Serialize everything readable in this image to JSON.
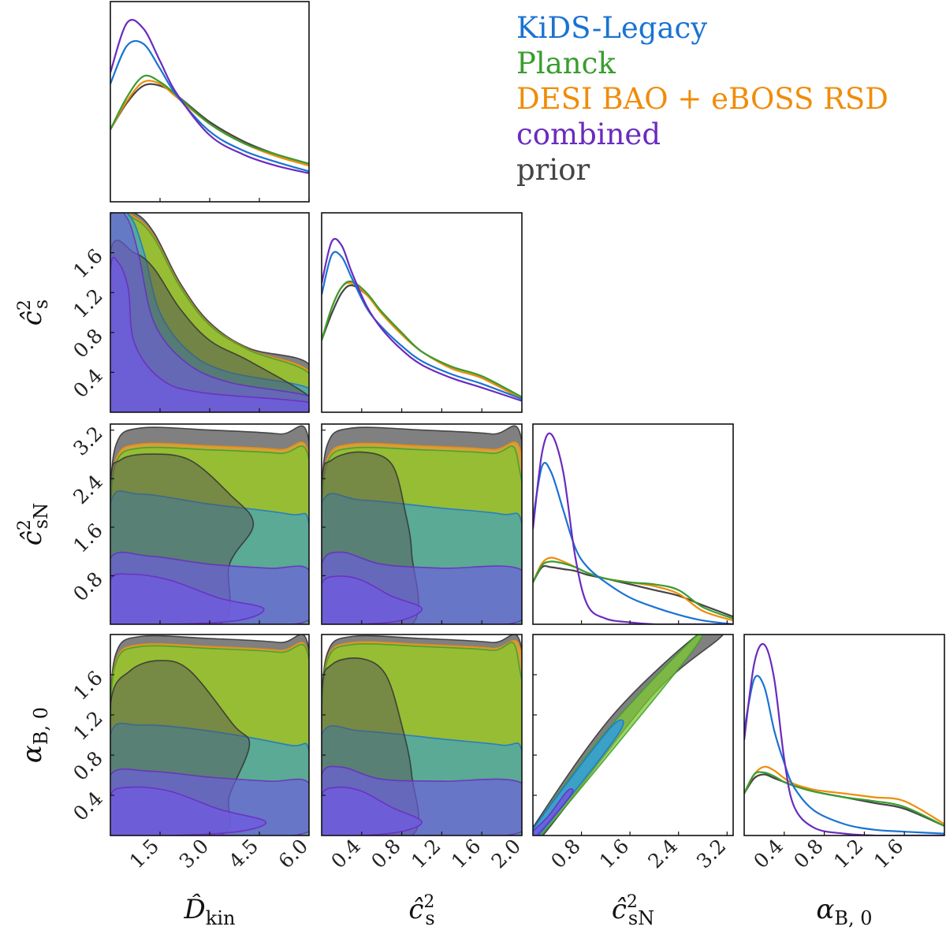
{
  "figure": {
    "type": "corner_plot",
    "parameters": [
      {
        "id": "Dkin",
        "label": "D̂",
        "sub": "kin",
        "range": [
          0,
          6.0
        ],
        "ticks": [
          1.5,
          3.0,
          4.5,
          6.0
        ]
      },
      {
        "id": "cs2",
        "label": "ĉ",
        "sup": "2",
        "sub": "s",
        "range": [
          0,
          2.0
        ],
        "ticks": [
          0.4,
          0.8,
          1.2,
          1.6,
          2.0
        ]
      },
      {
        "id": "csN2",
        "label": "ĉ",
        "sup": "2",
        "sub": "sN",
        "range": [
          0,
          3.3
        ],
        "ticks": [
          0.8,
          1.6,
          2.4,
          3.2
        ]
      },
      {
        "id": "alphaB0",
        "label": "α",
        "sub": "B, 0",
        "range": [
          0,
          2.0
        ],
        "ticks": [
          0.4,
          0.8,
          1.2,
          1.6
        ]
      }
    ]
  },
  "legend": [
    {
      "name": "KiDS-Legacy",
      "color": "#1a73d2"
    },
    {
      "name": "Planck",
      "color": "#3a9d2f"
    },
    {
      "name": "DESI BAO + eBOSS RSD",
      "color": "#f08c0a"
    },
    {
      "name": "combined",
      "color": "#6a2bbf"
    },
    {
      "name": "prior",
      "color": "#444444"
    }
  ],
  "chart_data": {
    "type": "corner",
    "series": [
      {
        "name": "KiDS-Legacy",
        "color": "#1a73d2",
        "fill": "#2a9be6"
      },
      {
        "name": "Planck",
        "color": "#3a9d2f",
        "fill": "#7ec932"
      },
      {
        "name": "DESI BAO + eBOSS RSD",
        "color": "#f08c0a",
        "fill": "#f2b01e"
      },
      {
        "name": "combined",
        "color": "#6a2bbf",
        "fill": "#6f5be0"
      },
      {
        "name": "prior",
        "color": "#444444",
        "fill": "#555555"
      }
    ],
    "marginals": {
      "Dkin": {
        "x": [
          0,
          0.5,
          1.0,
          1.5,
          2.0,
          3.0,
          4.0,
          5.0,
          6.0
        ],
        "series": {
          "KiDS-Legacy": [
            0.62,
            0.82,
            0.83,
            0.7,
            0.56,
            0.37,
            0.27,
            0.21,
            0.16
          ],
          "Planck": [
            0.38,
            0.55,
            0.66,
            0.63,
            0.56,
            0.41,
            0.31,
            0.25,
            0.2
          ],
          "DESI BAO + eBOSS RSD": [
            0.38,
            0.53,
            0.63,
            0.62,
            0.55,
            0.41,
            0.31,
            0.24,
            0.19
          ],
          "combined": [
            0.68,
            0.94,
            0.91,
            0.74,
            0.57,
            0.35,
            0.25,
            0.19,
            0.15
          ],
          "prior": [
            0.38,
            0.52,
            0.61,
            0.61,
            0.56,
            0.42,
            0.32,
            0.25,
            0.2
          ]
        }
      },
      "cs2": {
        "x": [
          0,
          0.1,
          0.2,
          0.3,
          0.45,
          0.6,
          0.8,
          1.0,
          1.3,
          1.6,
          2.0
        ],
        "series": {
          "KiDS-Legacy": [
            0.62,
            0.83,
            0.82,
            0.71,
            0.55,
            0.45,
            0.35,
            0.27,
            0.2,
            0.15,
            0.07
          ],
          "Planck": [
            0.38,
            0.55,
            0.66,
            0.69,
            0.63,
            0.53,
            0.42,
            0.32,
            0.24,
            0.19,
            0.08
          ],
          "DESI BAO + eBOSS RSD": [
            0.38,
            0.55,
            0.66,
            0.68,
            0.62,
            0.52,
            0.41,
            0.32,
            0.23,
            0.18,
            0.07
          ],
          "combined": [
            0.68,
            0.9,
            0.88,
            0.74,
            0.56,
            0.44,
            0.33,
            0.25,
            0.18,
            0.13,
            0.06
          ],
          "prior": [
            0.38,
            0.52,
            0.63,
            0.67,
            0.62,
            0.53,
            0.42,
            0.32,
            0.24,
            0.19,
            0.08
          ]
        }
      },
      "csN2": {
        "x": [
          0,
          0.15,
          0.3,
          0.5,
          0.7,
          0.9,
          1.2,
          1.6,
          2.0,
          2.4,
          2.8,
          3.3
        ],
        "series": {
          "KiDS-Legacy": [
            0.55,
            0.83,
            0.8,
            0.6,
            0.4,
            0.3,
            0.22,
            0.14,
            0.09,
            0.05,
            0.02,
            0.0
          ],
          "Planck": [
            0.22,
            0.31,
            0.33,
            0.32,
            0.3,
            0.27,
            0.24,
            0.22,
            0.21,
            0.18,
            0.09,
            0.03
          ],
          "DESI BAO + eBOSS RSD": [
            0.22,
            0.32,
            0.35,
            0.33,
            0.3,
            0.27,
            0.24,
            0.22,
            0.2,
            0.16,
            0.07,
            0.02
          ],
          "combined": [
            0.5,
            0.9,
            1.0,
            0.8,
            0.35,
            0.1,
            0.03,
            0.01,
            0.0,
            0.0,
            0.0,
            0.0
          ],
          "prior": [
            0.22,
            0.3,
            0.3,
            0.29,
            0.28,
            0.26,
            0.24,
            0.21,
            0.18,
            0.15,
            0.1,
            0.04
          ]
        }
      },
      "alphaB0": {
        "x": [
          0,
          0.1,
          0.2,
          0.3,
          0.4,
          0.5,
          0.7,
          1.0,
          1.3,
          1.6,
          2.0
        ],
        "series": {
          "KiDS-Legacy": [
            0.55,
            0.82,
            0.78,
            0.55,
            0.38,
            0.25,
            0.13,
            0.06,
            0.03,
            0.02,
            0.01
          ],
          "Planck": [
            0.22,
            0.32,
            0.33,
            0.31,
            0.28,
            0.26,
            0.23,
            0.2,
            0.18,
            0.15,
            0.05
          ],
          "DESI BAO + eBOSS RSD": [
            0.22,
            0.32,
            0.36,
            0.34,
            0.3,
            0.27,
            0.24,
            0.22,
            0.2,
            0.18,
            0.06
          ],
          "combined": [
            0.5,
            0.9,
            1.0,
            0.82,
            0.4,
            0.15,
            0.04,
            0.01,
            0.0,
            0.0,
            0.0
          ],
          "prior": [
            0.22,
            0.3,
            0.32,
            0.3,
            0.28,
            0.26,
            0.23,
            0.2,
            0.17,
            0.14,
            0.05
          ]
        }
      }
    },
    "panel_order": [
      [
        "Dkin"
      ],
      [
        "Dkin",
        "cs2"
      ],
      [
        "Dkin",
        "cs2",
        "csN2"
      ],
      [
        "Dkin",
        "cs2",
        "csN2",
        "alphaB0"
      ]
    ]
  }
}
